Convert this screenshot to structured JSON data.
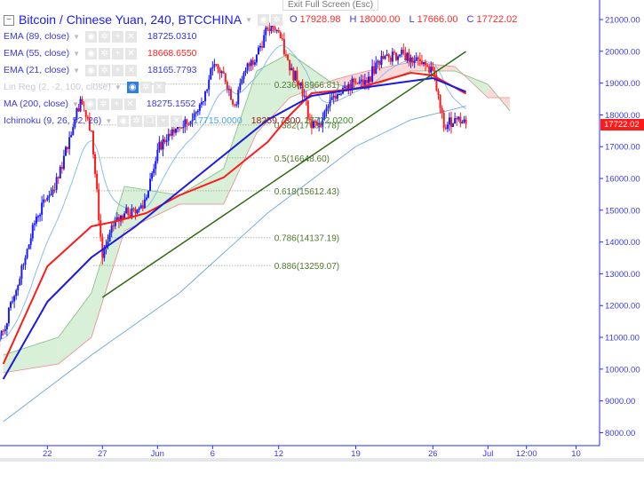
{
  "header": {
    "title": "Bitcoin / Chinese Yuan, 240, BTCCHINA",
    "tooltip": "Exit Full Screen (Esc)",
    "ohlc": [
      {
        "key": "O",
        "value": "17928.98"
      },
      {
        "key": "H",
        "value": "18000.00"
      },
      {
        "key": "L",
        "value": "17666.00"
      },
      {
        "key": "C",
        "value": "17722.02"
      }
    ]
  },
  "indicators": [
    {
      "label": "EMA (89, close)",
      "value": "18725.0310",
      "color": "#3030e0",
      "dim": false
    },
    {
      "label": "EMA (55, close)",
      "value": "18668.6550",
      "color": "#ff2020",
      "dim": false
    },
    {
      "label": "EMA (21, close)",
      "value": "18165.7793",
      "color": "#3a3ae8",
      "dim": false
    },
    {
      "label": "Lin Reg (2, -2, 100, close)",
      "value": "",
      "color": "#c9c9d6",
      "dim": true
    },
    {
      "label": "MA (200, close)",
      "value": "18275.1552",
      "color": "#3a3ae8",
      "dim": false
    },
    {
      "label": "Ichimoku (9, 26, 52, 26)",
      "values": [
        "17715.0000",
        "18259.7300",
        "17722.0200"
      ],
      "value_colors": [
        "#4aa3df",
        "#8b1a1a",
        "#3a8a2a"
      ]
    }
  ],
  "price_tag": "17722.02",
  "colors": {
    "up": "#1a1aff",
    "down": "#ff1a1a",
    "axis": "#2a2aff",
    "cloud_up": "#d8efd8",
    "cloud_down": "#fbd9d9",
    "trendline": "#2e6b12",
    "fib_text": "#4d7a2a"
  },
  "chart_data": {
    "type": "candlestick",
    "yaxis": {
      "ticks": [
        8000,
        9000,
        10000,
        11000,
        12000,
        13000,
        14000,
        15000,
        16000,
        17000,
        18000,
        19000,
        20000,
        21000
      ],
      "labels": [
        "8000.00",
        "9000.00",
        "10000.00",
        "11000.00",
        "12000.00",
        "13000.00",
        "14000.00",
        "15000.00",
        "16000.00",
        "17000.00",
        "18000.00",
        "19000.00",
        "20000.00",
        "21000.00"
      ],
      "range": [
        7600,
        21600
      ]
    },
    "xaxis": {
      "ticks": [
        {
          "date": "05-22",
          "label": "22"
        },
        {
          "date": "05-27",
          "label": "27"
        },
        {
          "date": "06-01",
          "label": "Jun"
        },
        {
          "date": "06-06",
          "label": "6"
        },
        {
          "date": "06-12",
          "label": "12"
        },
        {
          "date": "06-19",
          "label": "19"
        },
        {
          "date": "06-26",
          "label": "26"
        },
        {
          "date": "07-01",
          "label": "Jul"
        },
        {
          "date": "07-04 12:00",
          "label": "12:00"
        },
        {
          "date": "07-09",
          "label": "10"
        }
      ]
    },
    "closes": [
      [
        "05-18",
        11200
      ],
      [
        "05-19",
        12300
      ],
      [
        "05-20",
        13500
      ],
      [
        "05-21",
        14800
      ],
      [
        "05-22",
        15400
      ],
      [
        "05-23",
        16000
      ],
      [
        "05-24",
        17300
      ],
      [
        "05-25",
        18500
      ],
      [
        "05-26",
        17500
      ],
      [
        "05-27",
        13500
      ],
      [
        "05-28",
        14500
      ],
      [
        "05-29",
        14900
      ],
      [
        "05-30",
        14900
      ],
      [
        "05-31",
        15400
      ],
      [
        "06-01",
        16900
      ],
      [
        "06-02",
        17400
      ],
      [
        "06-03",
        17600
      ],
      [
        "06-04",
        17800
      ],
      [
        "06-05",
        18400
      ],
      [
        "06-06",
        19500
      ],
      [
        "06-07",
        19300
      ],
      [
        "06-08",
        18300
      ],
      [
        "06-09",
        19400
      ],
      [
        "06-10",
        19900
      ],
      [
        "06-11",
        20700
      ],
      [
        "06-12",
        20600
      ],
      [
        "06-13",
        19400
      ],
      [
        "06-14",
        19000
      ],
      [
        "06-15",
        17600
      ],
      [
        "06-16",
        17900
      ],
      [
        "06-17",
        18600
      ],
      [
        "06-18",
        18900
      ],
      [
        "06-19",
        19000
      ],
      [
        "06-20",
        19000
      ],
      [
        "06-21",
        19700
      ],
      [
        "06-22",
        19800
      ],
      [
        "06-23",
        19900
      ],
      [
        "06-24",
        19800
      ],
      [
        "06-25",
        19600
      ],
      [
        "06-26",
        19400
      ],
      [
        "06-27",
        17600
      ],
      [
        "06-28",
        17900
      ],
      [
        "06-29",
        17722.02
      ]
    ],
    "ema89": [
      [
        "05-18",
        9688
      ],
      [
        "05-22",
        12118
      ],
      [
        "05-26",
        13515
      ],
      [
        "05-30",
        14492
      ],
      [
        "06-03",
        15609
      ],
      [
        "06-07",
        16726
      ],
      [
        "06-11",
        17844
      ],
      [
        "06-15",
        18598
      ],
      [
        "06-19",
        18821
      ],
      [
        "06-23",
        19017
      ],
      [
        "06-26",
        19157
      ],
      [
        "06-29",
        18725
      ]
    ],
    "ema55": [
      [
        "05-18",
        10163
      ],
      [
        "05-22",
        13235
      ],
      [
        "05-26",
        14492
      ],
      [
        "05-28",
        14632
      ],
      [
        "05-31",
        14911
      ],
      [
        "06-03",
        15470
      ],
      [
        "06-07",
        16029
      ],
      [
        "06-11",
        17146
      ],
      [
        "06-13",
        17984
      ],
      [
        "06-15",
        18682
      ],
      [
        "06-19",
        18821
      ],
      [
        "06-24",
        19324
      ],
      [
        "06-26",
        19240
      ],
      [
        "06-29",
        18668
      ]
    ],
    "ma200": [
      [
        "05-18",
        8348
      ],
      [
        "05-26",
        10443
      ],
      [
        "06-03",
        12398
      ],
      [
        "06-11",
        14911
      ],
      [
        "06-19",
        17006
      ],
      [
        "06-24",
        17844
      ],
      [
        "06-29",
        18275
      ]
    ],
    "ichimoku_cloud": {
      "span_a": [
        [
          "05-18",
          10443
        ],
        [
          "05-23",
          11002
        ],
        [
          "05-26",
          12398
        ],
        [
          "05-29",
          15749
        ],
        [
          "06-03",
          15470
        ],
        [
          "06-07",
          16308
        ],
        [
          "06-10",
          19380
        ],
        [
          "06-13",
          19939
        ],
        [
          "06-17",
          18961
        ],
        [
          "06-20",
          18821
        ],
        [
          "06-24",
          19380
        ],
        [
          "06-28",
          19380
        ],
        [
          "07-01",
          18961
        ],
        [
          "07-03",
          18123
        ]
      ],
      "span_b": [
        [
          "05-18",
          9884
        ],
        [
          "05-23",
          10163
        ],
        [
          "05-26",
          11002
        ],
        [
          "05-29",
          14353
        ],
        [
          "06-03",
          15191
        ],
        [
          "06-07",
          15191
        ],
        [
          "06-10",
          17425
        ],
        [
          "06-13",
          18542
        ],
        [
          "06-17",
          19101
        ],
        [
          "06-20",
          19380
        ],
        [
          "06-24",
          19659
        ],
        [
          "06-28",
          19520
        ],
        [
          "07-01",
          18542
        ],
        [
          "07-03",
          18542
        ]
      ]
    },
    "trendline": [
      [
        "05-27",
        12258
      ],
      [
        "06-29",
        19995
      ]
    ],
    "fibonacci": {
      "from": "05-27",
      "to": "06-12",
      "levels": [
        {
          "ratio": 0.236,
          "price": 18966.81,
          "label": "0.236(18966.81)"
        },
        {
          "ratio": 0.382,
          "price": 17684.78,
          "label": "0.382(17684.78)"
        },
        {
          "ratio": 0.5,
          "price": 16648.6,
          "label": "0.5(16648.60)"
        },
        {
          "ratio": 0.618,
          "price": 15612.43,
          "label": "0.618(15612.43)"
        },
        {
          "ratio": 0.786,
          "price": 14137.19,
          "label": "0.786(14137.19)"
        },
        {
          "ratio": 0.886,
          "price": 13259.07,
          "label": "0.886(13259.07)"
        }
      ]
    }
  }
}
